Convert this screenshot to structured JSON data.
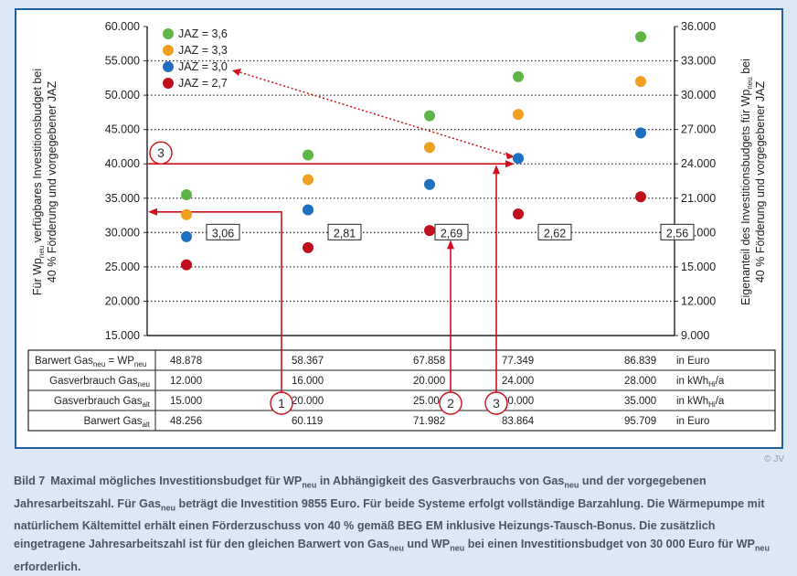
{
  "chart_data": {
    "type": "scatter",
    "y_left_ticks": [
      "60.000",
      "55.000",
      "50.000",
      "45.000",
      "40.000",
      "35.000",
      "30.000",
      "25.000",
      "20.000",
      "15.000"
    ],
    "y_right_ticks": [
      "36.000",
      "33.000",
      "30.000",
      "27.000",
      "24.000",
      "21.000",
      "18.000",
      "15.000",
      "12.000",
      "9.000"
    ],
    "ylim_left": [
      15000,
      60000
    ],
    "ylim_right": [
      9000,
      36000
    ],
    "ylabel_left": [
      "Für Wp",
      "neu",
      " verfügbares Investitionsbudget bei",
      "40 % Förderung und vorgegebener JAZ"
    ],
    "ylabel_right": [
      "Eigenanteil des Investitionsbudgets für Wp",
      "neu",
      " bei",
      "40 % Förderung und vorgegebener JAZ"
    ],
    "legend_position": "top-left",
    "grid": "dotted-horizontal",
    "series": [
      {
        "name": "JAZ = 3,6",
        "color": "#5fb548",
        "values": [
          35500,
          41300,
          47000,
          52700,
          58500
        ]
      },
      {
        "name": "JAZ = 3,3",
        "color": "#f0a020",
        "values": [
          32600,
          37700,
          42400,
          47200,
          52000
        ]
      },
      {
        "name": "JAZ = 3,0",
        "color": "#1f6fc0",
        "values": [
          29400,
          33300,
          37000,
          40800,
          44500
        ]
      },
      {
        "name": "JAZ = 2,7",
        "color": "#c00f1c",
        "values": [
          25300,
          27800,
          30300,
          32700,
          35200
        ]
      }
    ],
    "jaz_labels": [
      "3,06",
      "2,81",
      "2,69",
      "2,62",
      "2,56"
    ],
    "jaz_label_value": 30000,
    "annotations": {
      "arrow1": {
        "label": "1",
        "category": 1,
        "target": 33000
      },
      "arrow2": {
        "label": "2",
        "category": 2,
        "target": 30000
      },
      "arrow3": {
        "label": "3",
        "category": 3,
        "target": 40000
      },
      "dotted_arrow_from": {
        "category": 3,
        "value": 40800
      },
      "dotted_arrow_to_legend": "JAZ = 3,0"
    },
    "table": {
      "rows": [
        {
          "label": [
            "Barwert Gas",
            "neu",
            " = WP",
            "neu",
            ""
          ],
          "values": [
            "48.878",
            "58.367",
            "67.858",
            "77.349",
            "86.839"
          ],
          "unit": [
            "in Euro",
            "",
            ""
          ]
        },
        {
          "label": [
            "Gasverbrauch Gas",
            "neu",
            "",
            "",
            ""
          ],
          "values": [
            "12.000",
            "16.000",
            "20.000",
            "24.000",
            "28.000"
          ],
          "unit": [
            "in kWh",
            "Hi",
            "/a"
          ]
        },
        {
          "label": [
            "Gasverbrauch Gas",
            "alt",
            "",
            "",
            ""
          ],
          "values": [
            "15.000",
            "20.000",
            "25.000",
            "30.000",
            "35.000"
          ],
          "unit": [
            "in kWh",
            "Hi",
            "/a"
          ]
        },
        {
          "label": [
            "Barwert Gas",
            "alt",
            "",
            "",
            ""
          ],
          "values": [
            "48.256",
            "60.119",
            "71.982",
            "83.864",
            "95.709"
          ],
          "unit": [
            "in Euro",
            "",
            ""
          ]
        }
      ]
    }
  },
  "copyright": "© JV",
  "caption": {
    "bildno": "Bild 7",
    "parts": [
      "Maximal mögliches Investitionsbudget für WP",
      "neu",
      " in Abhängigkeit des Gasverbrauchs von Gas",
      "neu",
      " und der vorgegebenen Jahresarbeitszahl. Für Gas",
      "neu",
      " beträgt die Investition 9855 Euro. Für beide Systeme erfolgt vollständige Barzahlung. Die Wärmepumpe mit natürlichem Kältemittel erhält einen Förderzuschuss von 40 % gemäß BEG EM inklusive Heizungs-Tausch-Bonus. Die zusätzlich eingetragene Jahresarbeitszahl ist für den gleichen Barwert von Gas",
      "neu",
      " und WP",
      "neu",
      " bei einen Investitionsbudget von 30 000 Euro für WP",
      "neu",
      " erforderlich."
    ]
  }
}
